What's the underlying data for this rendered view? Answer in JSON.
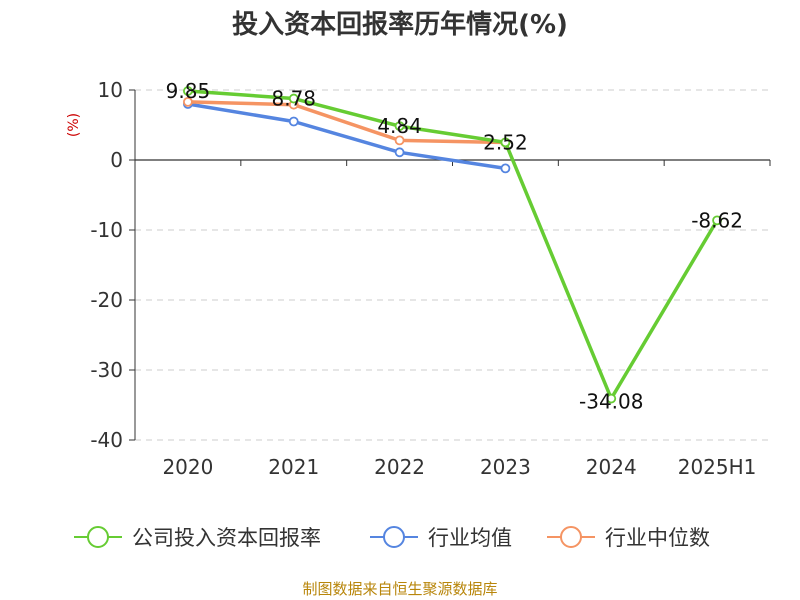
{
  "chart_data": {
    "type": "line",
    "title": "投入资本回报率历年情况(%)",
    "ylabel": "(%)",
    "xlabel": "",
    "categories": [
      "2020",
      "2021",
      "2022",
      "2023",
      "2024",
      "2025H1"
    ],
    "ylim": [
      -40,
      10
    ],
    "yticks": [
      10,
      0,
      -10,
      -20,
      -30,
      -40
    ],
    "grid": true,
    "legend_position": "bottom",
    "series": [
      {
        "name": "公司投入资本回报率",
        "color": "#66cc33",
        "values": [
          9.85,
          8.78,
          4.84,
          2.52,
          -34.08,
          -8.62
        ],
        "labels": [
          "9.85",
          "8.78",
          "4.84",
          "2.52",
          "-34.08",
          "-8.62"
        ]
      },
      {
        "name": "行业均值",
        "color": "#5585e0",
        "values": [
          8.0,
          5.5,
          1.1,
          -1.2,
          null,
          null
        ]
      },
      {
        "name": "行业中位数",
        "color": "#f59463",
        "values": [
          8.3,
          7.9,
          2.8,
          2.5,
          null,
          null
        ]
      }
    ]
  },
  "source_text": "制图数据来自恒生聚源数据库"
}
